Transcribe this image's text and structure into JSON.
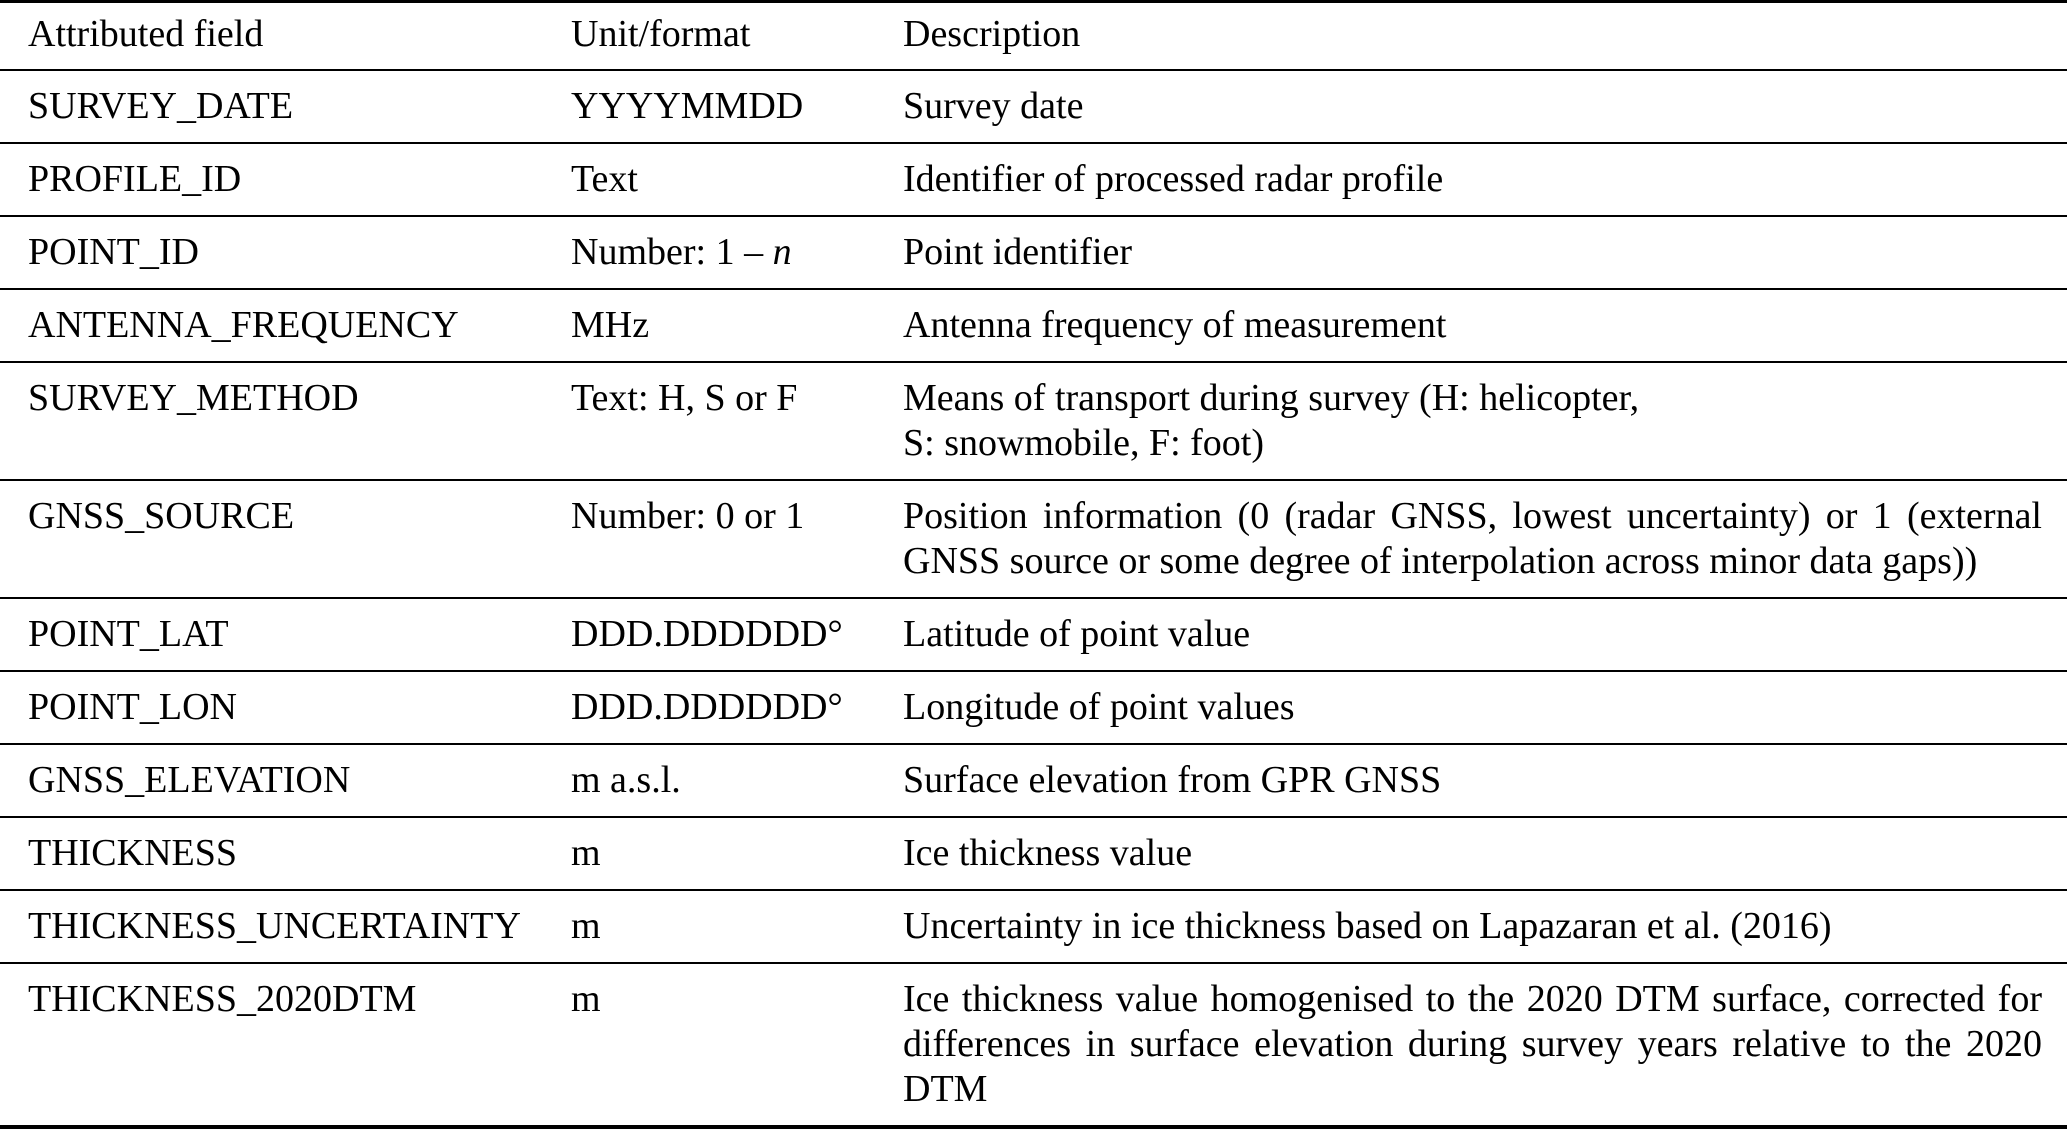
{
  "page": {
    "background": "#ffffff",
    "text_color": "#000000",
    "rule_color": "#000000"
  },
  "table": {
    "columns": [
      {
        "label": "Attributed field"
      },
      {
        "label": "Unit/format"
      },
      {
        "label": "Description"
      }
    ],
    "rows": [
      {
        "field": "SURVEY_DATE",
        "unit": [
          {
            "t": "YYYYMMDD"
          }
        ],
        "desc": [
          {
            "t": "Survey date"
          }
        ]
      },
      {
        "field": "PROFILE_ID",
        "unit": [
          {
            "t": "Text"
          }
        ],
        "desc": [
          {
            "t": "Identifier of processed radar profile"
          }
        ]
      },
      {
        "field": "POINT_ID",
        "unit": [
          {
            "t": "Number: 1 – "
          },
          {
            "t": "n",
            "i": true
          }
        ],
        "desc": [
          {
            "t": "Point identifier"
          }
        ]
      },
      {
        "field": "ANTENNA_FREQUENCY",
        "unit": [
          {
            "t": "MHz"
          }
        ],
        "desc": [
          {
            "t": "Antenna frequency of measurement"
          }
        ]
      },
      {
        "field": "SURVEY_METHOD",
        "unit": [
          {
            "t": "Text: H, S or F"
          }
        ],
        "desc": [
          {
            "t": "Means of transport during survey (H: helicopter,"
          },
          {
            "t": "S: snowmobile, F: foot)"
          }
        ]
      },
      {
        "field": "GNSS_SOURCE",
        "unit": [
          {
            "t": "Number: 0 or 1"
          }
        ],
        "desc": [
          {
            "t": "Position information (0 (radar GNSS, lowest uncertainty) or 1 (external",
            "j": true
          },
          {
            "t": "GNSS source or some degree of interpolation across minor data gaps))"
          }
        ]
      },
      {
        "field": "POINT_LAT",
        "unit": [
          {
            "t": "DDD.DDDDDD°"
          }
        ],
        "desc": [
          {
            "t": "Latitude of point value"
          }
        ]
      },
      {
        "field": "POINT_LON",
        "unit": [
          {
            "t": "DDD.DDDDDD°"
          }
        ],
        "desc": [
          {
            "t": "Longitude of point values"
          }
        ]
      },
      {
        "field": "GNSS_ELEVATION",
        "unit": [
          {
            "t": "m a.s.l."
          }
        ],
        "desc": [
          {
            "t": "Surface elevation from GPR GNSS"
          }
        ]
      },
      {
        "field": "THICKNESS",
        "unit": [
          {
            "t": "m"
          }
        ],
        "desc": [
          {
            "t": "Ice thickness value"
          }
        ]
      },
      {
        "field": "THICKNESS_UNCERTAINTY",
        "unit": [
          {
            "t": "m"
          }
        ],
        "desc": [
          {
            "t": "Uncertainty in ice thickness based on Lapazaran et al. (2016)"
          }
        ]
      },
      {
        "field": "THICKNESS_2020DTM",
        "unit": [
          {
            "t": "m"
          }
        ],
        "desc": [
          {
            "t": "Ice thickness value homogenised to the 2020 DTM surface, corrected for",
            "j": true
          },
          {
            "t": "differences in surface elevation during survey years relative to the 2020",
            "j": true
          },
          {
            "t": "DTM"
          }
        ]
      }
    ]
  }
}
